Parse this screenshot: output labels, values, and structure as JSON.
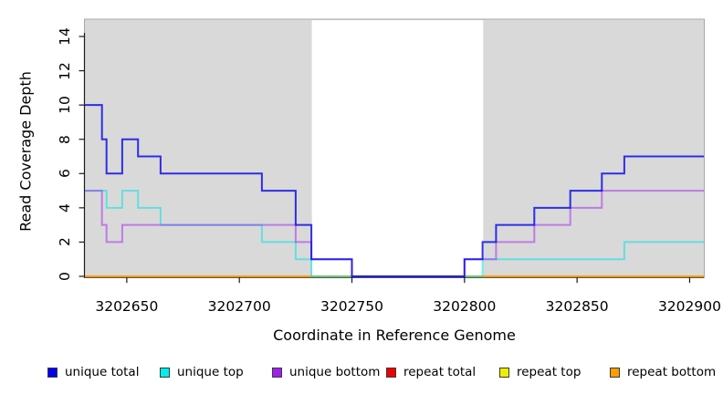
{
  "chart_data": {
    "type": "line",
    "subtype": "step-coverage-plot",
    "title": "",
    "xlabel": "Coordinate in Reference Genome",
    "ylabel": "Read Coverage Depth",
    "x_domain": [
      3202631.4,
      3202906.3
    ],
    "y_domain": [
      0,
      15
    ],
    "x_ticks": [
      3202650,
      3202700,
      3202750,
      3202800,
      3202850,
      3202900
    ],
    "y_ticks": [
      0,
      2,
      4,
      6,
      8,
      10,
      12,
      14
    ],
    "grid": false,
    "plot_background": {
      "shaded_color": "#d9d9d9",
      "shaded_border_color": "#a9a9a9",
      "shaded_regions": [
        {
          "from": 3202631.4,
          "to": 3202732.2
        },
        {
          "from": 3202808.3,
          "to": 3202906.3
        }
      ],
      "unshaded_gap": {
        "from": 3202732.2,
        "to": 3202808.3
      }
    },
    "series": [
      {
        "name": "unique total",
        "color": "#0f0fe8",
        "opacity": 0.85,
        "points": [
          [
            3202631.4,
            10
          ],
          [
            3202639,
            8
          ],
          [
            3202641,
            6
          ],
          [
            3202648,
            8
          ],
          [
            3202655,
            7
          ],
          [
            3202665,
            6
          ],
          [
            3202710,
            5
          ],
          [
            3202725,
            3
          ],
          [
            3202732,
            1
          ],
          [
            3202750,
            0
          ],
          [
            3202800,
            1
          ],
          [
            3202808,
            2
          ],
          [
            3202814,
            3
          ],
          [
            3202831,
            4
          ],
          [
            3202847,
            5
          ],
          [
            3202861,
            6
          ],
          [
            3202871,
            7
          ]
        ]
      },
      {
        "name": "unique top",
        "color": "#00e4e4",
        "opacity": 0.55,
        "points": [
          [
            3202631.4,
            5
          ],
          [
            3202641,
            4
          ],
          [
            3202648,
            5
          ],
          [
            3202655,
            4
          ],
          [
            3202665,
            3
          ],
          [
            3202710,
            2
          ],
          [
            3202725,
            1
          ],
          [
            3202732,
            0
          ],
          [
            3202808,
            1
          ],
          [
            3202871,
            2
          ]
        ]
      },
      {
        "name": "unique bottom",
        "color": "#a020f0",
        "opacity": 0.5,
        "points": [
          [
            3202631.4,
            5
          ],
          [
            3202639,
            3
          ],
          [
            3202641,
            2
          ],
          [
            3202648,
            3
          ],
          [
            3202725,
            2
          ],
          [
            3202732,
            1
          ],
          [
            3202750,
            0
          ],
          [
            3202800,
            1
          ],
          [
            3202814,
            2
          ],
          [
            3202831,
            3
          ],
          [
            3202847,
            4
          ],
          [
            3202861,
            5
          ]
        ]
      },
      {
        "name": "repeat total",
        "color": "#ee0000",
        "opacity": 1,
        "points": [
          [
            3202631.4,
            0
          ]
        ]
      },
      {
        "name": "repeat top",
        "color": "#eeee00",
        "opacity": 1,
        "points": [
          [
            3202631.4,
            0
          ]
        ]
      },
      {
        "name": "repeat bottom",
        "color": "#ff9d00",
        "opacity": 1,
        "points": [
          [
            3202631.4,
            0
          ]
        ]
      }
    ],
    "draw_order": [
      3,
      4,
      5,
      1,
      2,
      0
    ]
  },
  "legend": {
    "items": [
      {
        "label": "unique total",
        "color": "#0000ee"
      },
      {
        "label": "unique top",
        "color": "#00eeee"
      },
      {
        "label": "unique bottom",
        "color": "#a020f0"
      },
      {
        "label": "repeat total",
        "color": "#ee0000"
      },
      {
        "label": "repeat top",
        "color": "#eeee00"
      },
      {
        "label": "repeat bottom",
        "color": "#ff9d00"
      }
    ]
  }
}
